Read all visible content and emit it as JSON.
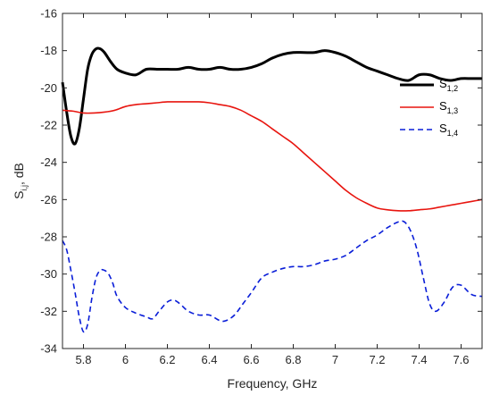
{
  "chart_data": {
    "type": "line",
    "xlabel": "Frequency, GHz",
    "ylabel": {
      "main": "S",
      "sub": "i,j",
      "suffix": ", dB"
    },
    "xlim": [
      5.7,
      7.7
    ],
    "ylim": [
      -34,
      -16
    ],
    "xticks": [
      5.8,
      6,
      6.2,
      6.4,
      6.6,
      6.8,
      7,
      7.2,
      7.4,
      7.6
    ],
    "xtick_labels": [
      "5.8",
      "6",
      "6.2",
      "6.4",
      "6.6",
      "6.8",
      "7",
      "7.2",
      "7.4",
      "7.6"
    ],
    "yticks": [
      -34,
      -32,
      -30,
      -28,
      -26,
      -24,
      -22,
      -20,
      -18,
      -16
    ],
    "ytick_labels": [
      "-34",
      "-32",
      "-30",
      "-28",
      "-26",
      "-24",
      "-22",
      "-20",
      "-18",
      "-16"
    ],
    "grid": false,
    "legend_position": "right",
    "series": [
      {
        "name": "S1,2",
        "name_main": "S",
        "name_sub": "1,2",
        "color": "#000000",
        "style": "solid",
        "width": 3,
        "x": [
          5.7,
          5.72,
          5.74,
          5.76,
          5.78,
          5.8,
          5.82,
          5.84,
          5.86,
          5.88,
          5.9,
          5.93,
          5.96,
          6.0,
          6.05,
          6.1,
          6.15,
          6.2,
          6.25,
          6.3,
          6.35,
          6.4,
          6.45,
          6.5,
          6.55,
          6.6,
          6.65,
          6.7,
          6.75,
          6.8,
          6.85,
          6.9,
          6.95,
          7.0,
          7.05,
          7.1,
          7.15,
          7.2,
          7.25,
          7.3,
          7.35,
          7.4,
          7.45,
          7.5,
          7.55,
          7.6,
          7.65,
          7.7
        ],
        "y": [
          -19.7,
          -21.3,
          -22.6,
          -23.0,
          -22.2,
          -20.6,
          -19.0,
          -18.2,
          -17.9,
          -17.9,
          -18.1,
          -18.6,
          -19.0,
          -19.2,
          -19.3,
          -19.0,
          -19.0,
          -19.0,
          -19.0,
          -18.9,
          -19.0,
          -19.0,
          -18.9,
          -19.0,
          -19.0,
          -18.9,
          -18.7,
          -18.4,
          -18.2,
          -18.1,
          -18.1,
          -18.1,
          -18.0,
          -18.1,
          -18.3,
          -18.6,
          -18.9,
          -19.1,
          -19.3,
          -19.5,
          -19.6,
          -19.3,
          -19.3,
          -19.5,
          -19.6,
          -19.5,
          -19.5,
          -19.5
        ]
      },
      {
        "name": "S1,3",
        "name_main": "S",
        "name_sub": "1,3",
        "color": "#e8150f",
        "style": "solid",
        "width": 1.6,
        "x": [
          5.7,
          5.75,
          5.8,
          5.85,
          5.9,
          5.95,
          6.0,
          6.05,
          6.1,
          6.15,
          6.2,
          6.25,
          6.3,
          6.35,
          6.4,
          6.45,
          6.5,
          6.55,
          6.6,
          6.65,
          6.7,
          6.75,
          6.8,
          6.85,
          6.9,
          6.95,
          7.0,
          7.05,
          7.1,
          7.15,
          7.2,
          7.25,
          7.3,
          7.35,
          7.4,
          7.45,
          7.5,
          7.55,
          7.6,
          7.65,
          7.7
        ],
        "y": [
          -21.2,
          -21.25,
          -21.35,
          -21.35,
          -21.3,
          -21.2,
          -21.0,
          -20.9,
          -20.85,
          -20.8,
          -20.75,
          -20.75,
          -20.75,
          -20.75,
          -20.8,
          -20.9,
          -21.0,
          -21.2,
          -21.5,
          -21.8,
          -22.2,
          -22.6,
          -23.0,
          -23.5,
          -24.0,
          -24.5,
          -25.0,
          -25.5,
          -25.9,
          -26.2,
          -26.45,
          -26.55,
          -26.6,
          -26.6,
          -26.55,
          -26.5,
          -26.4,
          -26.3,
          -26.2,
          -26.1,
          -26.0
        ]
      },
      {
        "name": "S1,4",
        "name_main": "S",
        "name_sub": "1,4",
        "color": "#0a1ed8",
        "style": "dashed",
        "width": 1.6,
        "x": [
          5.7,
          5.72,
          5.74,
          5.76,
          5.78,
          5.8,
          5.82,
          5.84,
          5.86,
          5.88,
          5.9,
          5.92,
          5.94,
          5.96,
          6.0,
          6.05,
          6.1,
          6.13,
          6.16,
          6.2,
          6.23,
          6.26,
          6.3,
          6.35,
          6.4,
          6.45,
          6.48,
          6.52,
          6.56,
          6.6,
          6.65,
          6.7,
          6.75,
          6.8,
          6.85,
          6.9,
          6.95,
          7.0,
          7.05,
          7.1,
          7.15,
          7.2,
          7.25,
          7.3,
          7.33,
          7.36,
          7.39,
          7.42,
          7.45,
          7.48,
          7.52,
          7.56,
          7.6,
          7.65,
          7.7
        ],
        "y": [
          -28.2,
          -28.7,
          -29.8,
          -31.0,
          -32.3,
          -33.1,
          -32.7,
          -31.3,
          -30.2,
          -29.8,
          -29.8,
          -30.0,
          -30.5,
          -31.2,
          -31.8,
          -32.1,
          -32.3,
          -32.4,
          -32.0,
          -31.5,
          -31.4,
          -31.6,
          -32.0,
          -32.2,
          -32.2,
          -32.5,
          -32.5,
          -32.2,
          -31.6,
          -31.0,
          -30.2,
          -29.9,
          -29.7,
          -29.6,
          -29.6,
          -29.5,
          -29.3,
          -29.2,
          -29.0,
          -28.6,
          -28.2,
          -27.9,
          -27.5,
          -27.2,
          -27.2,
          -27.7,
          -28.7,
          -30.2,
          -31.6,
          -32.0,
          -31.5,
          -30.7,
          -30.6,
          -31.1,
          -31.2
        ]
      }
    ]
  }
}
